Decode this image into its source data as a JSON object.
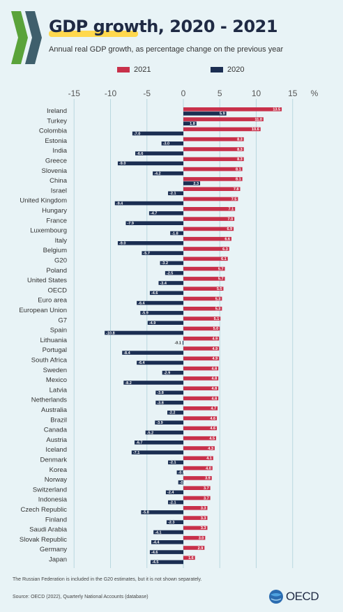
{
  "header": {
    "title": "GDP growth, 2020 - 2021",
    "subtitle": "Annual real GDP growth, as percentage change on the previous year"
  },
  "colors": {
    "series_2021": "#c8304a",
    "series_2020": "#1b2e52",
    "gridline": "#b9d7df",
    "background": "#e8f3f6"
  },
  "footer": {
    "footnote": "The Russian Federation is included in the G20 estimates, but it is not shown separately.",
    "source": "Source: OECD (2022), Quarterly National Accounts (database)",
    "logo_text": "OECD"
  },
  "chart_data": {
    "type": "bar",
    "orientation": "horizontal",
    "title": "GDP growth, 2020 - 2021",
    "subtitle": "Annual real GDP growth, as percentage change on the previous year",
    "xlim": [
      -15,
      15
    ],
    "xticks": [
      -15,
      -10,
      -5,
      0,
      5,
      10,
      15
    ],
    "x_unit_label": "%",
    "grid": true,
    "legend_position": "top",
    "categories": [
      "Ireland",
      "Turkey",
      "Colombia",
      "Estonia",
      "India",
      "Greece",
      "Slovenia",
      "China",
      "Israel",
      "United Kingdom",
      "Hungary",
      "France",
      "Luxembourg",
      "Italy",
      "Belgium",
      "G20",
      "Poland",
      "United States",
      "OECD",
      "Euro area",
      "European Union",
      "G7",
      "Spain",
      "Lithuania",
      "Portugal",
      "South Africa",
      "Sweden",
      "Mexico",
      "Latvia",
      "Netherlands",
      "Australia",
      "Brazil",
      "Canada",
      "Austria",
      "Iceland",
      "Denmark",
      "Korea",
      "Norway",
      "Switzerland",
      "Indonesia",
      "Czech Republic",
      "Finland",
      "Saudi Arabia",
      "Slovak Republic",
      "Germany",
      "Japan"
    ],
    "series": [
      {
        "name": "2021",
        "color": "#c8304a",
        "values": [
          13.5,
          11.0,
          10.6,
          8.3,
          8.3,
          8.3,
          8.1,
          8.1,
          7.8,
          7.5,
          7.1,
          7.0,
          6.9,
          6.6,
          6.3,
          6.1,
          5.7,
          5.7,
          5.5,
          5.3,
          5.3,
          5.1,
          5.0,
          4.9,
          4.9,
          4.9,
          4.8,
          4.8,
          4.8,
          4.8,
          4.7,
          4.6,
          4.6,
          4.5,
          4.3,
          4.1,
          4.0,
          3.9,
          3.7,
          3.7,
          3.3,
          3.3,
          3.3,
          3.0,
          2.9,
          1.6
        ]
      },
      {
        "name": "2020",
        "color": "#1b2e52",
        "values": [
          5.9,
          1.8,
          -7.0,
          -3.0,
          -6.6,
          -9.0,
          -4.2,
          2.3,
          -2.1,
          -9.4,
          -4.7,
          -7.9,
          -1.8,
          -9.0,
          -5.7,
          -3.2,
          -2.5,
          -3.4,
          -4.6,
          -6.4,
          -5.9,
          -4.9,
          -10.8,
          -0.1,
          -8.4,
          -6.4,
          -2.9,
          -8.2,
          -3.8,
          -3.8,
          -2.2,
          -3.9,
          -5.2,
          -6.7,
          -7.1,
          -2.1,
          -0.9,
          -0.7,
          -2.4,
          -2.1,
          -5.8,
          -2.3,
          -4.1,
          -4.4,
          -4.6,
          -4.5
        ]
      }
    ]
  }
}
